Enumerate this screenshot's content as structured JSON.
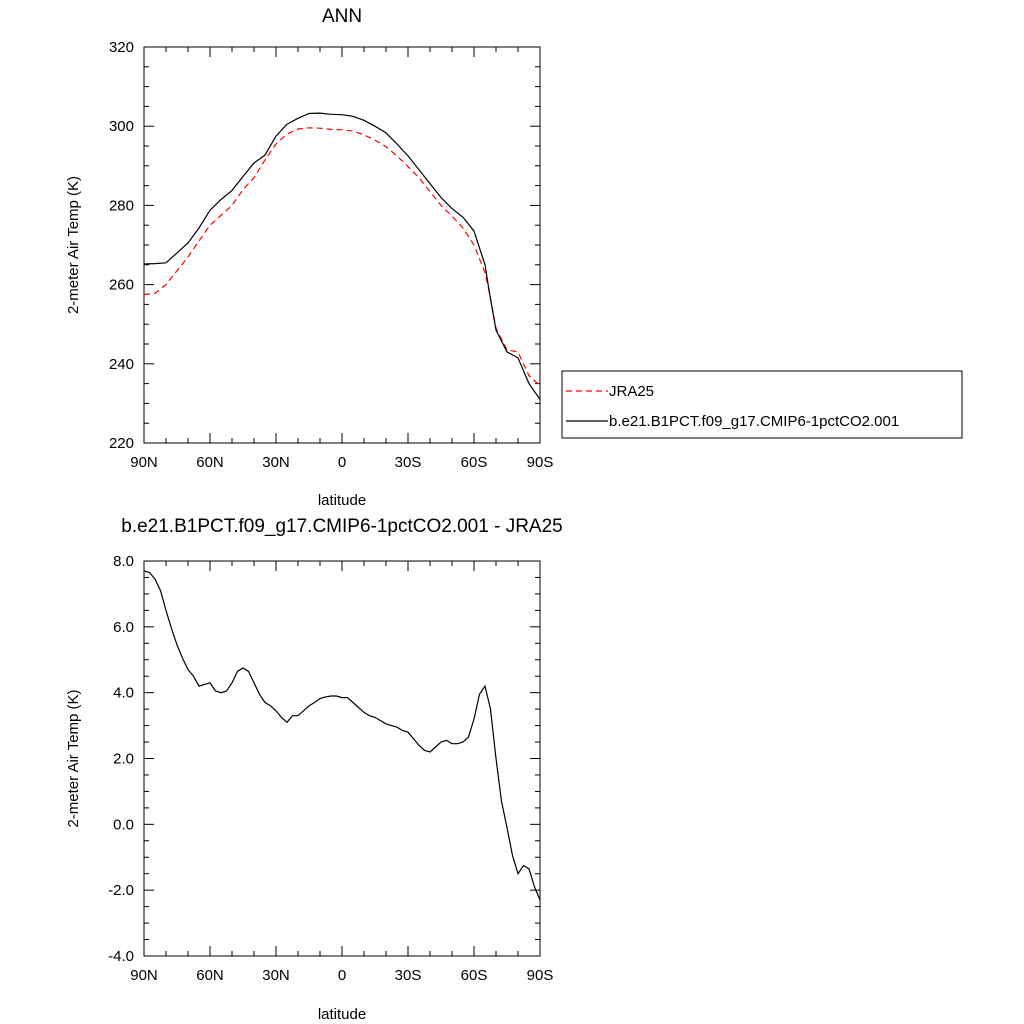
{
  "chart_data": [
    {
      "type": "line",
      "title": "ANN",
      "xlabel": "latitude",
      "ylabel": "2-meter Air Temp (K)",
      "xlim": [
        90,
        -90
      ],
      "ylim": [
        220,
        320
      ],
      "xticks": [
        90,
        60,
        30,
        0,
        -30,
        -60,
        -90
      ],
      "xtick_labels": [
        "90N",
        "60N",
        "30N",
        "0",
        "30S",
        "60S",
        "90S"
      ],
      "yticks": [
        220,
        240,
        260,
        280,
        300,
        320
      ],
      "ytick_labels": [
        "220",
        "240",
        "260",
        "280",
        "300",
        "320"
      ],
      "legend_position": "right",
      "series": [
        {
          "name": "JRA25",
          "color": "#ff0000",
          "dash": "dashed",
          "x": [
            90,
            85,
            80,
            75,
            70,
            65,
            60,
            55,
            50,
            45,
            40,
            35,
            30,
            25,
            20,
            15,
            10,
            5,
            0,
            -5,
            -10,
            -15,
            -20,
            -25,
            -30,
            -35,
            -40,
            -45,
            -50,
            -55,
            -60,
            -65,
            -67,
            -70,
            -75,
            -80,
            -85,
            -90
          ],
          "y": [
            257.5,
            257.8,
            260,
            263.5,
            267,
            271,
            275,
            277.5,
            280,
            284,
            287,
            291.5,
            295.5,
            298,
            299.3,
            299.6,
            299.5,
            299.2,
            299.1,
            298.8,
            297.8,
            296.5,
            294.8,
            292.5,
            289.8,
            287,
            283.5,
            280,
            277.3,
            274.3,
            270,
            263,
            258,
            249,
            243.5,
            243,
            237,
            234.5
          ]
        },
        {
          "name": "b.e21.B1PCT.f09_g17.CMIP6-1pctCO2.001",
          "color": "#000000",
          "dash": "solid",
          "x": [
            90,
            85,
            80,
            75,
            70,
            65,
            60,
            55,
            50,
            45,
            40,
            35,
            30,
            25,
            20,
            15,
            10,
            5,
            0,
            -5,
            -10,
            -15,
            -20,
            -25,
            -30,
            -35,
            -40,
            -45,
            -50,
            -55,
            -60,
            -65,
            -67,
            -70,
            -75,
            -80,
            -85,
            -90
          ],
          "y": [
            265.2,
            265.3,
            265.5,
            268,
            270.5,
            274.3,
            278.8,
            281.5,
            283.8,
            287.3,
            290.7,
            292.7,
            297.5,
            300.5,
            302,
            303.2,
            303.3,
            303,
            302.9,
            302.5,
            301.5,
            300,
            298.3,
            295.5,
            292.5,
            289,
            285.5,
            282,
            279.2,
            277,
            273.5,
            265,
            258,
            248.5,
            243,
            241.5,
            235,
            231
          ]
        }
      ]
    },
    {
      "type": "line",
      "title": "b.e21.B1PCT.f09_g17.CMIP6-1pctCO2.001 - JRA25",
      "xlabel": "latitude",
      "ylabel": "2-meter Air Temp (K)",
      "xlim": [
        90,
        -90
      ],
      "ylim": [
        -4.0,
        8.0
      ],
      "xticks": [
        90,
        60,
        30,
        0,
        -30,
        -60,
        -90
      ],
      "xtick_labels": [
        "90N",
        "60N",
        "30N",
        "0",
        "30S",
        "60S",
        "90S"
      ],
      "yticks": [
        -4,
        -2,
        0,
        2,
        4,
        6,
        8
      ],
      "ytick_labels": [
        "-4.0",
        "-2.0",
        "0.0",
        "2.0",
        "4.0",
        "6.0",
        "8.0"
      ],
      "series": [
        {
          "color": "#000000",
          "dash": "solid",
          "x": [
            90,
            87.5,
            85,
            82.5,
            80,
            77.5,
            75,
            72.5,
            70,
            67.5,
            65,
            62.5,
            60,
            57.5,
            55,
            52.5,
            50,
            47.5,
            45,
            42.5,
            40,
            37.5,
            35,
            32.5,
            30,
            27.5,
            25,
            22.5,
            20,
            17.5,
            15,
            12.5,
            10,
            7.5,
            5,
            2.5,
            0,
            -2.5,
            -5,
            -7.5,
            -10,
            -12.5,
            -15,
            -17.5,
            -20,
            -22.5,
            -25,
            -27.5,
            -30,
            -32.5,
            -35,
            -37.5,
            -40,
            -42.5,
            -45,
            -47.5,
            -50,
            -52.5,
            -55,
            -57.5,
            -60,
            -62.5,
            -65,
            -67.5,
            -70,
            -72.5,
            -75,
            -77.5,
            -80,
            -82.5,
            -85,
            -87.5,
            -90
          ],
          "y": [
            7.7,
            7.65,
            7.45,
            7.1,
            6.5,
            5.95,
            5.45,
            5.05,
            4.7,
            4.5,
            4.2,
            4.25,
            4.3,
            4.05,
            4.0,
            4.05,
            4.3,
            4.65,
            4.75,
            4.65,
            4.3,
            3.95,
            3.7,
            3.6,
            3.45,
            3.25,
            3.1,
            3.3,
            3.3,
            3.45,
            3.6,
            3.7,
            3.82,
            3.87,
            3.9,
            3.9,
            3.85,
            3.85,
            3.7,
            3.55,
            3.4,
            3.3,
            3.25,
            3.15,
            3.05,
            3.0,
            2.95,
            2.85,
            2.8,
            2.6,
            2.4,
            2.25,
            2.2,
            2.35,
            2.5,
            2.55,
            2.45,
            2.45,
            2.5,
            2.65,
            3.2,
            3.95,
            4.2,
            3.5,
            2.0,
            0.7,
            -0.1,
            -0.95,
            -1.5,
            -1.25,
            -1.35,
            -1.9,
            -2.3
          ]
        }
      ]
    }
  ]
}
